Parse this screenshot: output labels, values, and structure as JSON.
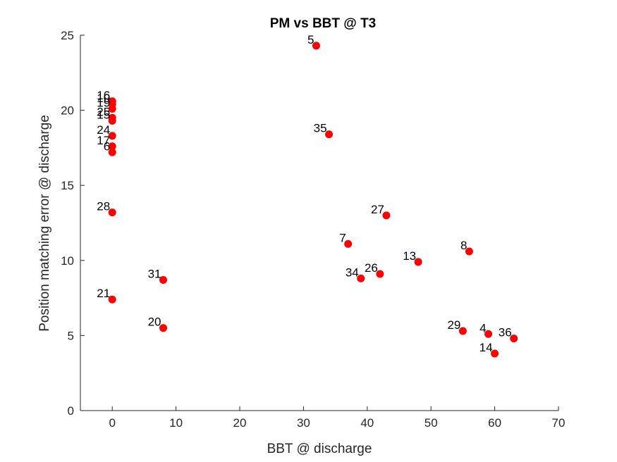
{
  "chart_data": {
    "type": "scatter",
    "title": "PM vs BBT @ T3",
    "xlabel": "BBT @ discharge",
    "ylabel": "Position matching error @ discharge",
    "xlim": [
      -5,
      70
    ],
    "ylim": [
      0,
      25
    ],
    "xticks": [
      0,
      10,
      20,
      30,
      40,
      50,
      60,
      70
    ],
    "yticks": [
      0,
      5,
      10,
      15,
      20,
      25
    ],
    "grid": false,
    "marker_color": "#ff0000",
    "points": [
      {
        "label": "5",
        "x": 32,
        "y": 24.3
      },
      {
        "label": "16",
        "x": 0,
        "y": 20.6
      },
      {
        "label": "10",
        "x": 0,
        "y": 20.4
      },
      {
        "label": "19",
        "x": 0,
        "y": 20.1
      },
      {
        "label": "25",
        "x": 0,
        "y": 19.5
      },
      {
        "label": "15",
        "x": 0,
        "y": 19.3
      },
      {
        "label": "35",
        "x": 34,
        "y": 18.4
      },
      {
        "label": "24",
        "x": 0,
        "y": 18.3
      },
      {
        "label": "17",
        "x": 0,
        "y": 17.6
      },
      {
        "label": "6",
        "x": 0,
        "y": 17.2
      },
      {
        "label": "28",
        "x": 0,
        "y": 13.2
      },
      {
        "label": "27",
        "x": 43,
        "y": 13.0
      },
      {
        "label": "7",
        "x": 37,
        "y": 11.1
      },
      {
        "label": "8",
        "x": 56,
        "y": 10.6
      },
      {
        "label": "13",
        "x": 48,
        "y": 9.9
      },
      {
        "label": "26",
        "x": 42,
        "y": 9.1
      },
      {
        "label": "34",
        "x": 39,
        "y": 8.8
      },
      {
        "label": "31",
        "x": 8,
        "y": 8.7
      },
      {
        "label": "21",
        "x": 0,
        "y": 7.4
      },
      {
        "label": "20",
        "x": 8,
        "y": 5.5
      },
      {
        "label": "29",
        "x": 55,
        "y": 5.3
      },
      {
        "label": "4",
        "x": 59,
        "y": 5.1
      },
      {
        "label": "36",
        "x": 63,
        "y": 4.8
      },
      {
        "label": "14",
        "x": 60,
        "y": 3.8
      }
    ]
  }
}
